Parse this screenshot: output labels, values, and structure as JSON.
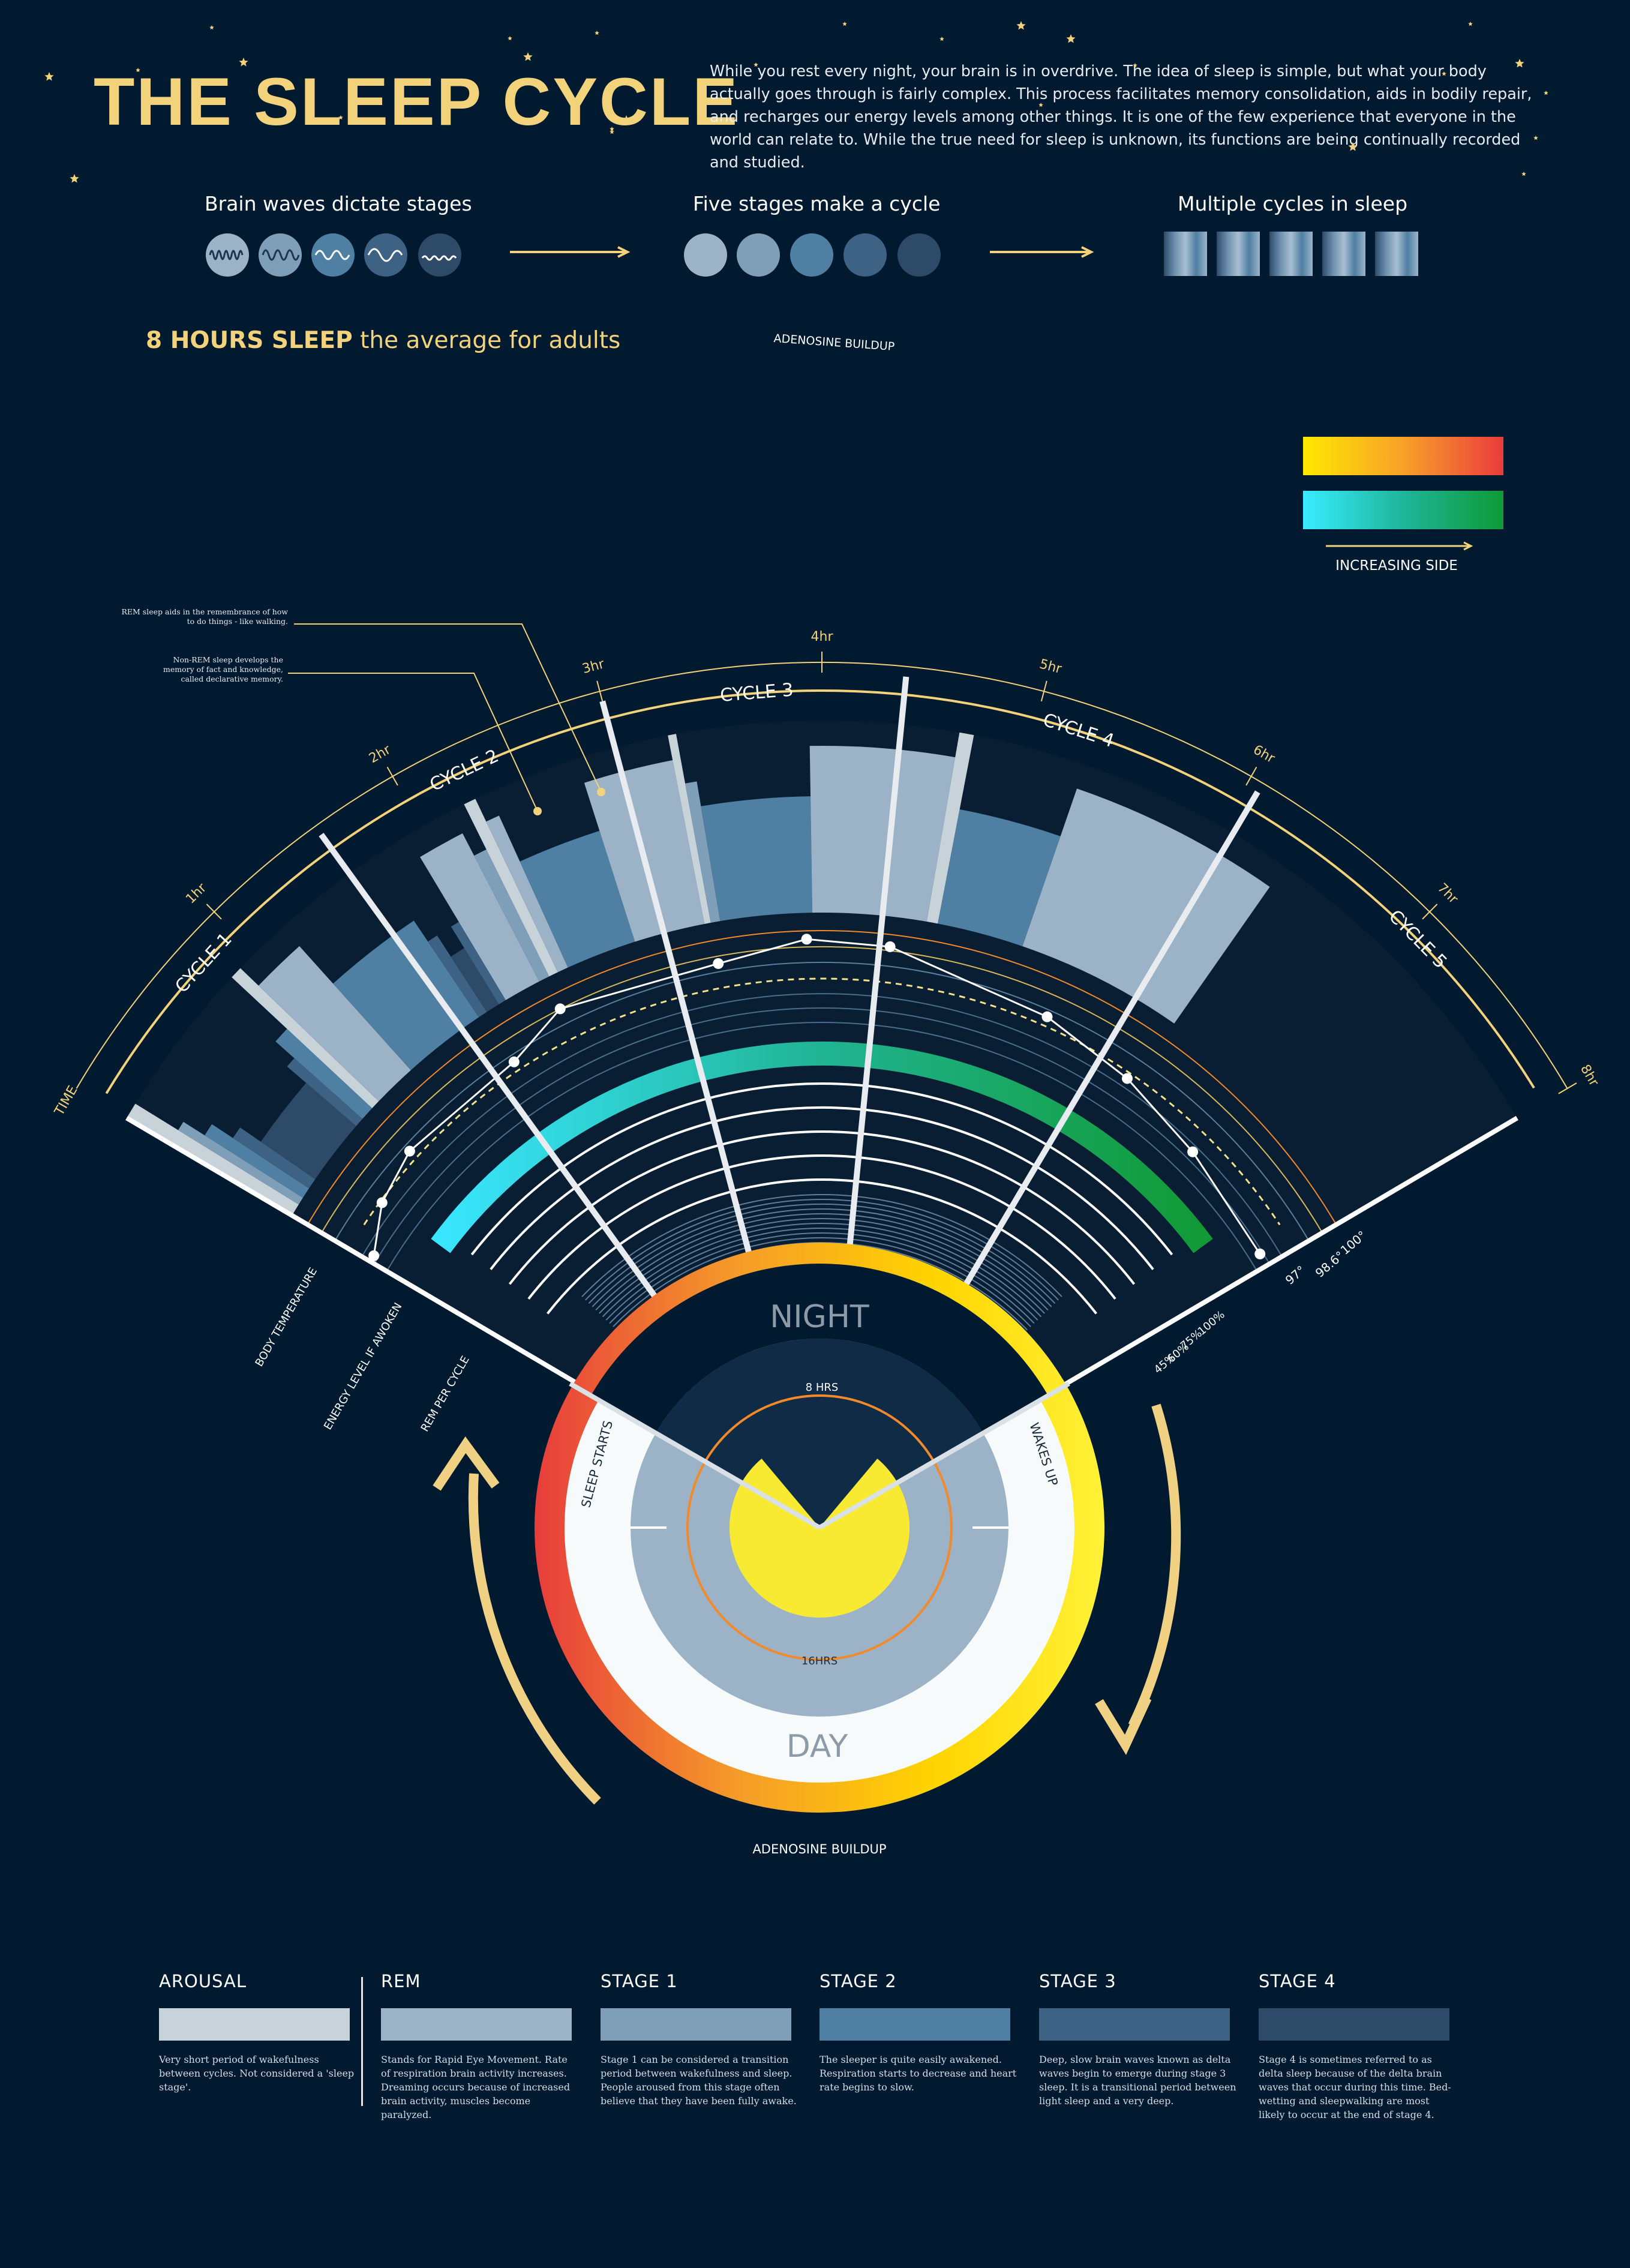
{
  "title": "THE SLEEP CYCLE",
  "intro": "While you rest every night, your brain is in overdrive. The idea of sleep is simple, but what your body actually goes through is fairly complex. This process facilitates memory consolidation, aids in bodily repair, and recharges our energy levels among other things. It is one of the few experience that everyone in the world can relate to. While the true need for sleep is unknown, its functions are being continually recorded and studied.",
  "overview": {
    "brain_waves": "Brain waves dictate stages",
    "five_stages": "Five stages make a cycle",
    "multiple_cycles": "Multiple cycles in sleep"
  },
  "hours": {
    "bold": "8 HOURS SLEEP",
    "rest": " the average for adults"
  },
  "adenosine_top": "ADENOSINE BUILDUP",
  "adenosine_bottom": "ADENOSINE BUILDUP",
  "gradient_key": {
    "label": "INCREASING SIDE"
  },
  "notes": {
    "rem": "REM sleep aids in the remembrance of how to do things - like walking.",
    "nonrem": "Non-REM sleep develops the memory of fact and knowledge, called declarative memory."
  },
  "time_axis": {
    "start": "TIME",
    "ticks": [
      "1hr",
      "2hr",
      "3hr",
      "4hr",
      "5hr",
      "6hr",
      "7hr",
      "8hr"
    ]
  },
  "cycles": [
    "CYCLE 1",
    "CYCLE 2",
    "CYCLE 3",
    "CYCLE 4",
    "CYCLE 5"
  ],
  "rings": {
    "body_temperature": "BODY TEMPERATURE",
    "energy": "ENERGY LEVEL IF AWOKEN",
    "rem_per_cycle": "REM PER CYCLE"
  },
  "temp_labels": [
    "100°",
    "98.6°",
    "97°"
  ],
  "energy_labels": [
    "100%",
    "75%",
    "60%",
    "45%"
  ],
  "clock": {
    "night": "NIGHT",
    "day": "DAY",
    "night_hours": "8 HRS",
    "day_hours": "16HRS",
    "sleep_starts": "SLEEP STARTS",
    "wakes_up": "WAKES UP"
  },
  "stages": [
    {
      "name": "AROUSAL",
      "color": "#c8d2d9",
      "desc": "Very short period of wakefulness between cycles. Not considered a 'sleep stage'."
    },
    {
      "name": "REM",
      "color": "#9cb3c7",
      "desc": "Stands for Rapid Eye Movement. Rate of respiration brain activity increases. Dreaming occurs because of increased brain activity, muscles become paralyzed."
    },
    {
      "name": "STAGE 1",
      "color": "#7f9fb9",
      "desc": "Stage 1 can be considered a transition period between wakefulness and sleep. People aroused from this stage often believe that they have been fully awake."
    },
    {
      "name": "STAGE 2",
      "color": "#4f7fa2",
      "desc": "The sleeper is quite easily awakened. Respiration starts to decrease and heart rate begins to slow."
    },
    {
      "name": "STAGE 3",
      "color": "#3d6283",
      "desc": "Deep, slow brain waves known as delta waves begin to emerge during stage 3 sleep. It is a transitional period between light sleep and a very deep."
    },
    {
      "name": "STAGE 4",
      "color": "#2d4a68",
      "desc": "Stage 4 is sometimes referred to as delta sleep because of the delta brain waves that occur during this time. Bed-wetting and sleepwalking are most likely to occur at the end of stage 4."
    }
  ],
  "hypnogram": {
    "stage_order": [
      "arousal",
      "rem",
      "stage1",
      "stage2",
      "stage3",
      "stage4"
    ],
    "segments": [
      [
        "arousal",
        0.08
      ],
      [
        "stage1",
        0.05
      ],
      [
        "stage2",
        0.07
      ],
      [
        "stage3",
        0.07
      ],
      [
        "stage4",
        0.42
      ],
      [
        "stage3",
        0.06
      ],
      [
        "stage2",
        0.09
      ],
      [
        "arousal",
        0.06
      ],
      [
        "rem",
        0.28
      ],
      [
        "stage2",
        0.54
      ],
      [
        "stage3",
        0.06
      ],
      [
        "stage4",
        0.09
      ],
      [
        "stage3",
        0.05
      ],
      [
        "rem",
        0.24
      ],
      [
        "stage1",
        0.07
      ],
      [
        "arousal",
        0.06
      ],
      [
        "rem",
        0.07
      ],
      [
        "stage2",
        0.45
      ],
      [
        "rem",
        0.45
      ],
      [
        "arousal",
        0.04
      ],
      [
        "stage1",
        0.06
      ],
      [
        "stage2",
        0.58
      ],
      [
        "rem",
        0.72
      ],
      [
        "arousal",
        0.07
      ],
      [
        "stage2",
        0.55
      ],
      [
        "rem",
        1.07
      ]
    ],
    "cycle_boundaries_hr": [
      1.59,
      3.0,
      4.38,
      6.06
    ],
    "body_temp": [
      [
        0.05,
        97.0
      ],
      [
        0.4,
        97.6
      ],
      [
        0.8,
        97.9
      ],
      [
        1.75,
        97.9
      ],
      [
        2.2,
        98.5
      ],
      [
        3.3,
        98.3
      ],
      [
        3.9,
        98.7
      ],
      [
        4.45,
        98.6
      ],
      [
        5.6,
        97.9
      ],
      [
        6.3,
        97.5
      ],
      [
        7.0,
        97.1
      ],
      [
        7.9,
        96.8
      ]
    ]
  }
}
